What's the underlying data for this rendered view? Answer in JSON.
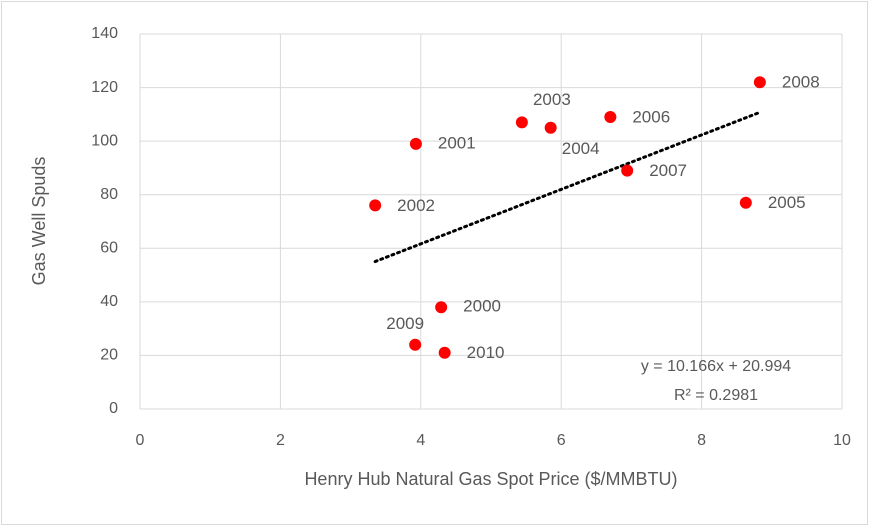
{
  "chart_data": {
    "type": "scatter",
    "x_label": "Henry Hub Natural Gas Spot Price ($/MMBTU)",
    "y_label": "Gas Well Spuds",
    "xlim": [
      0,
      10
    ],
    "xticks": [
      0,
      2,
      4,
      6,
      8,
      10
    ],
    "ylim": [
      0,
      140
    ],
    "yticks": [
      0,
      20,
      40,
      60,
      80,
      100,
      120,
      140
    ],
    "grid": true,
    "series": [
      {
        "color": "#ff0000",
        "x": [
          4.29,
          3.93,
          3.35,
          5.44,
          5.85,
          8.63,
          6.7,
          6.94,
          8.83,
          3.92,
          4.34
        ],
        "y": [
          38,
          99,
          76,
          107,
          105,
          77,
          109,
          89,
          122,
          24,
          21
        ],
        "point_labels": [
          "2000",
          "2001",
          "2002",
          "2003",
          "2004",
          "2005",
          "2006",
          "2007",
          "2008",
          "2009",
          "2010"
        ]
      }
    ],
    "trendline": {
      "slope": 10.166,
      "intercept": 20.994,
      "style": "dotted",
      "color": "#000000",
      "equation": "y = 10.166x + 20.994",
      "r2": "R² = 0.2981"
    }
  }
}
